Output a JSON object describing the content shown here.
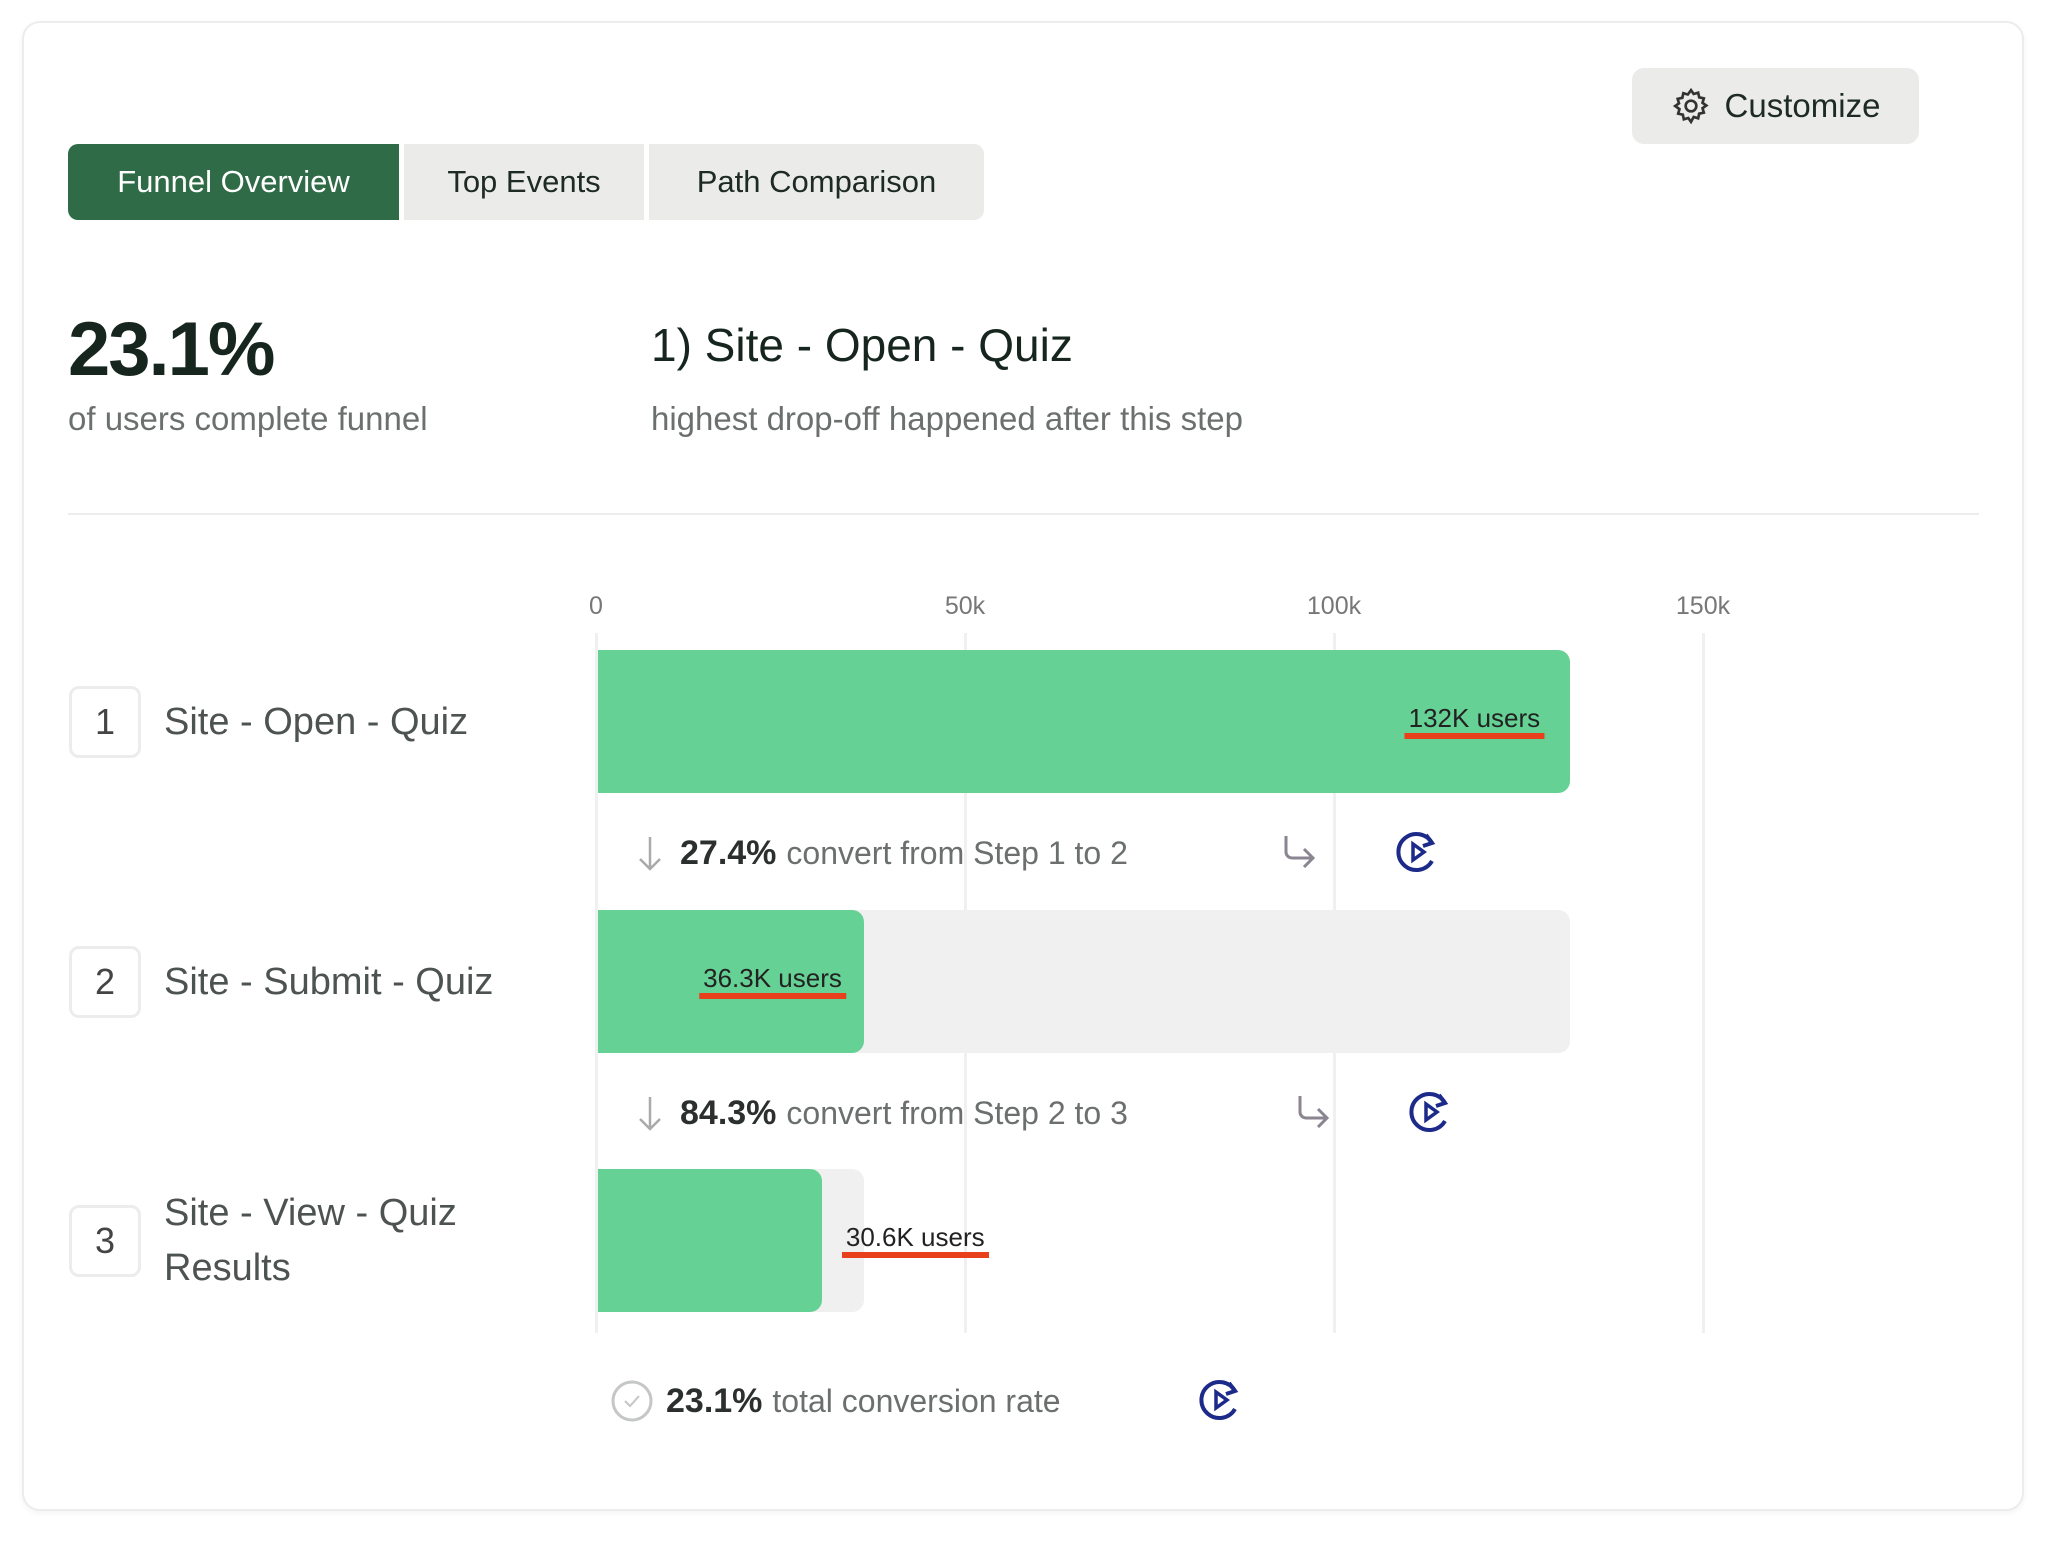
{
  "toolbar": {
    "customize_label": "Customize",
    "customize_icon": "gear-icon"
  },
  "tabs": [
    {
      "label": "Funnel Overview",
      "active": true
    },
    {
      "label": "Top Events",
      "active": false
    },
    {
      "label": "Path Comparison",
      "active": false
    }
  ],
  "summary": {
    "completion_rate": "23.1%",
    "completion_caption": "of users complete funnel",
    "dropoff_step": "1) Site - Open - Quiz",
    "dropoff_caption": "highest drop-off happened after this step"
  },
  "chart_data": {
    "type": "bar",
    "orientation": "horizontal",
    "categories": [
      "Site - Open - Quiz",
      "Site - Submit - Quiz",
      "Site - View - Quiz Results"
    ],
    "values": [
      132000,
      36300,
      30600
    ],
    "value_labels": [
      "132K users",
      "36.3K users",
      "30.6K users"
    ],
    "xticks": [
      "0",
      "50k",
      "100k",
      "150k"
    ],
    "xtick_values": [
      0,
      50000,
      100000,
      150000
    ],
    "xlim": [
      0,
      150000
    ],
    "grid": true
  },
  "steps": [
    {
      "number": "1",
      "label": "Site - Open - Quiz"
    },
    {
      "number": "2",
      "label": "Site - Submit - Quiz"
    },
    {
      "number": "3",
      "label": "Site - View - Quiz Results"
    }
  ],
  "conversions": [
    {
      "rate": "27.4%",
      "text": "convert from Step 1 to 2"
    },
    {
      "rate": "84.3%",
      "text": "convert from Step 2 to 3"
    }
  ],
  "total": {
    "rate": "23.1%",
    "text": "total conversion rate"
  },
  "colors": {
    "accent": "#2f6b47",
    "bar": "#66d194",
    "bar_bg": "#eff0ef",
    "highlight": "#e8401c",
    "play": "#1c2a8a"
  }
}
